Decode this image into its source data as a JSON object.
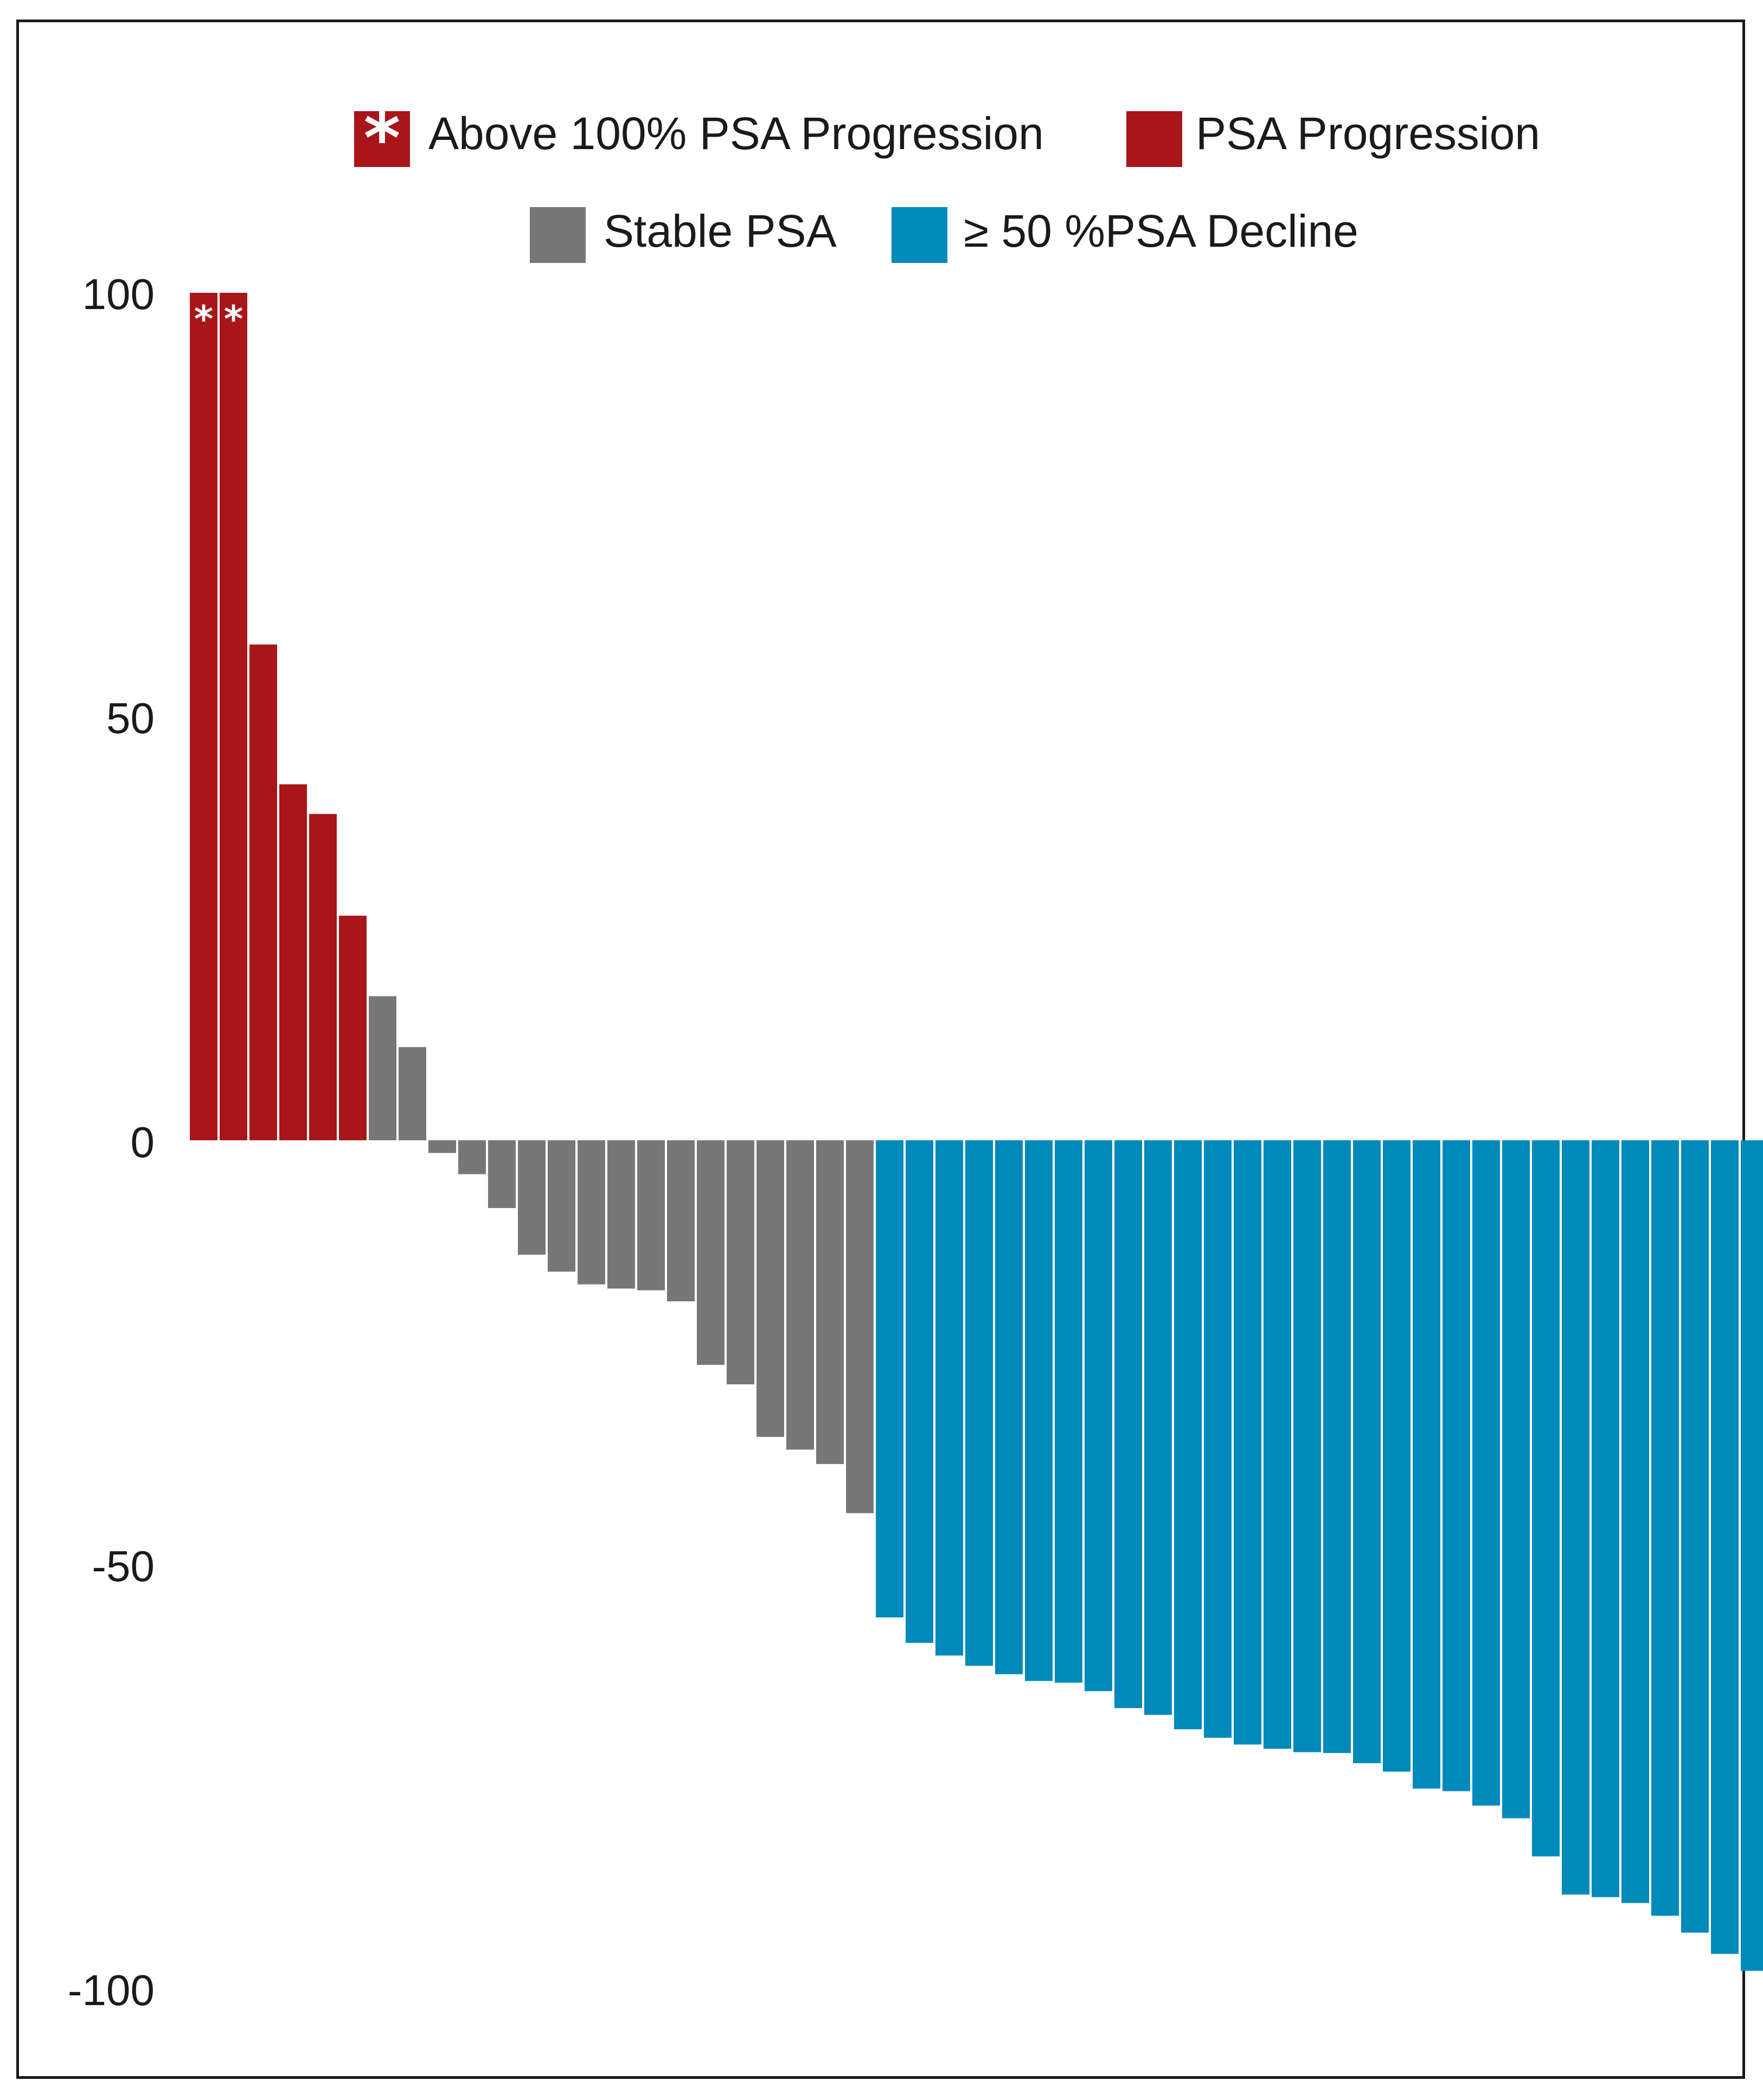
{
  "chart_data": {
    "type": "bar",
    "title": "",
    "xlabel": "",
    "ylabel": "",
    "ylim": [
      -100,
      100
    ],
    "yticks": [
      100,
      50,
      0,
      -50,
      -100
    ],
    "grid": false,
    "legend_position": "top",
    "colors": {
      "above_100_progression": "#a8161a",
      "progression": "#a8161a",
      "stable": "#777777",
      "decline": "#0089bb"
    },
    "legend": [
      {
        "key": "above_100_progression",
        "label": "Above 100% PSA Progression",
        "marker": "*"
      },
      {
        "key": "progression",
        "label": "PSA Progression"
      },
      {
        "key": "stable",
        "label": "Stable PSA"
      },
      {
        "key": "decline",
        "label": "≥ 50 %PSA Decline"
      }
    ],
    "values": [
      100,
      100,
      58.5,
      42,
      38.5,
      26.5,
      17,
      11,
      -1.5,
      -4,
      -8,
      -13.5,
      -15.5,
      -17,
      -17.5,
      -17.7,
      -19,
      -26.5,
      -28.8,
      -35,
      -36.5,
      -38.2,
      -44,
      -56.3,
      -59.3,
      -60.8,
      -62,
      -63,
      -63.8,
      -64,
      -65,
      -67,
      -67.8,
      -69.5,
      -70.5,
      -71.3,
      -71.8,
      -72.2,
      -72.3,
      -73.5,
      -74.5,
      -76.5,
      -76.8,
      -78.5,
      -80,
      -84.5,
      -89,
      -89.3,
      -90,
      -91.5,
      -93.5,
      -96,
      -98
    ],
    "categories_by_bar": [
      "above_100_progression",
      "above_100_progression",
      "progression",
      "progression",
      "progression",
      "progression",
      "stable",
      "stable",
      "stable",
      "stable",
      "stable",
      "stable",
      "stable",
      "stable",
      "stable",
      "stable",
      "stable",
      "stable",
      "stable",
      "stable",
      "stable",
      "stable",
      "stable",
      "decline",
      "decline",
      "decline",
      "decline",
      "decline",
      "decline",
      "decline",
      "decline",
      "decline",
      "decline",
      "decline",
      "decline",
      "decline",
      "decline",
      "decline",
      "decline",
      "decline",
      "decline",
      "decline",
      "decline",
      "decline",
      "decline",
      "decline",
      "decline",
      "decline",
      "decline",
      "decline",
      "decline",
      "decline",
      "decline"
    ],
    "bar_annotations": {
      "0": "*",
      "1": "*"
    }
  }
}
